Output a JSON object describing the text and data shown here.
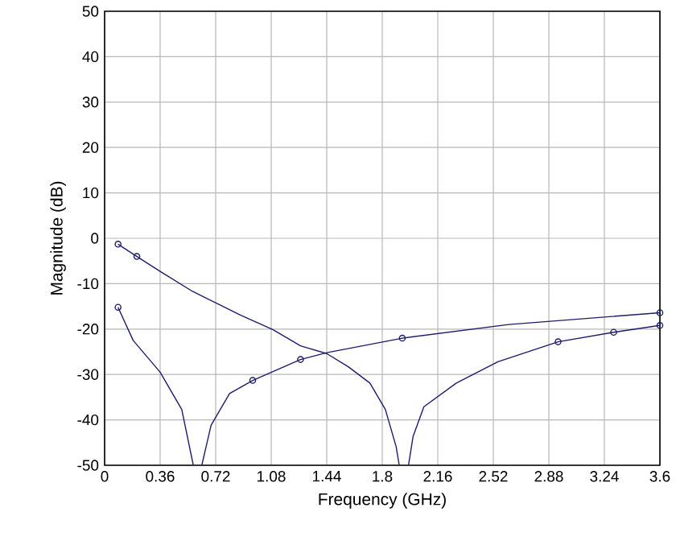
{
  "chart_data": {
    "type": "line",
    "xlabel": "Frequency (GHz)",
    "ylabel": "Magnitude (dB)",
    "xlim": [
      0,
      3.6
    ],
    "ylim": [
      -50,
      50
    ],
    "xticks": [
      0,
      0.36,
      0.72,
      1.08,
      1.44,
      1.8,
      2.16,
      2.52,
      2.88,
      3.24,
      3.6
    ],
    "yticks": [
      -50,
      -40,
      -30,
      -20,
      -10,
      0,
      10,
      20,
      30,
      40,
      50
    ],
    "grid": true,
    "series": [
      {
        "marker": "none",
        "color": "#1c1c6a",
        "x": [
          0.087,
          0.209,
          0.36,
          0.57,
          0.88,
          1.09,
          1.27,
          1.44,
          1.58,
          1.72,
          1.82,
          1.89,
          1.91
        ],
        "values": [
          -1.3,
          -4.0,
          -7.3,
          -11.7,
          -16.9,
          -20.1,
          -23.7,
          -25.4,
          -28.3,
          -31.9,
          -37.7,
          -45.9,
          -50
        ]
      },
      {
        "marker": "none",
        "color": "#1c1c6a",
        "x": [
          1.97,
          2.0,
          2.07,
          2.28,
          2.55,
          2.94,
          3.3,
          3.6
        ],
        "values": [
          -50,
          -43.6,
          -37.1,
          -31.9,
          -27.2,
          -22.8,
          -20.7,
          -19.2
        ]
      },
      {
        "marker": "none",
        "color": "#1c1c6a",
        "x": [
          0.087,
          0.185,
          0.36,
          0.5,
          0.575
        ],
        "values": [
          -15.2,
          -22.5,
          -29.5,
          -37.7,
          -50
        ]
      },
      {
        "marker": "none",
        "color": "#1c1c6a",
        "x": [
          0.63,
          0.69,
          0.81,
          0.96,
          1.27,
          1.44,
          1.93,
          2.62,
          3.6
        ],
        "values": [
          -50,
          -41.2,
          -34.2,
          -31.3,
          -26.7,
          -25.2,
          -22.0,
          -19.0,
          -16.4
        ]
      },
      {
        "type": "scatter",
        "marker": "circle",
        "color": "#1c1c6a",
        "x": [
          0.087,
          0.209,
          2.94,
          3.3,
          3.6,
          0.087,
          0.96,
          1.27,
          1.93,
          3.6
        ],
        "values": [
          -1.3,
          -4.0,
          -22.8,
          -20.7,
          -19.2,
          -15.2,
          -31.3,
          -26.7,
          -22.0,
          -16.4
        ]
      }
    ]
  }
}
